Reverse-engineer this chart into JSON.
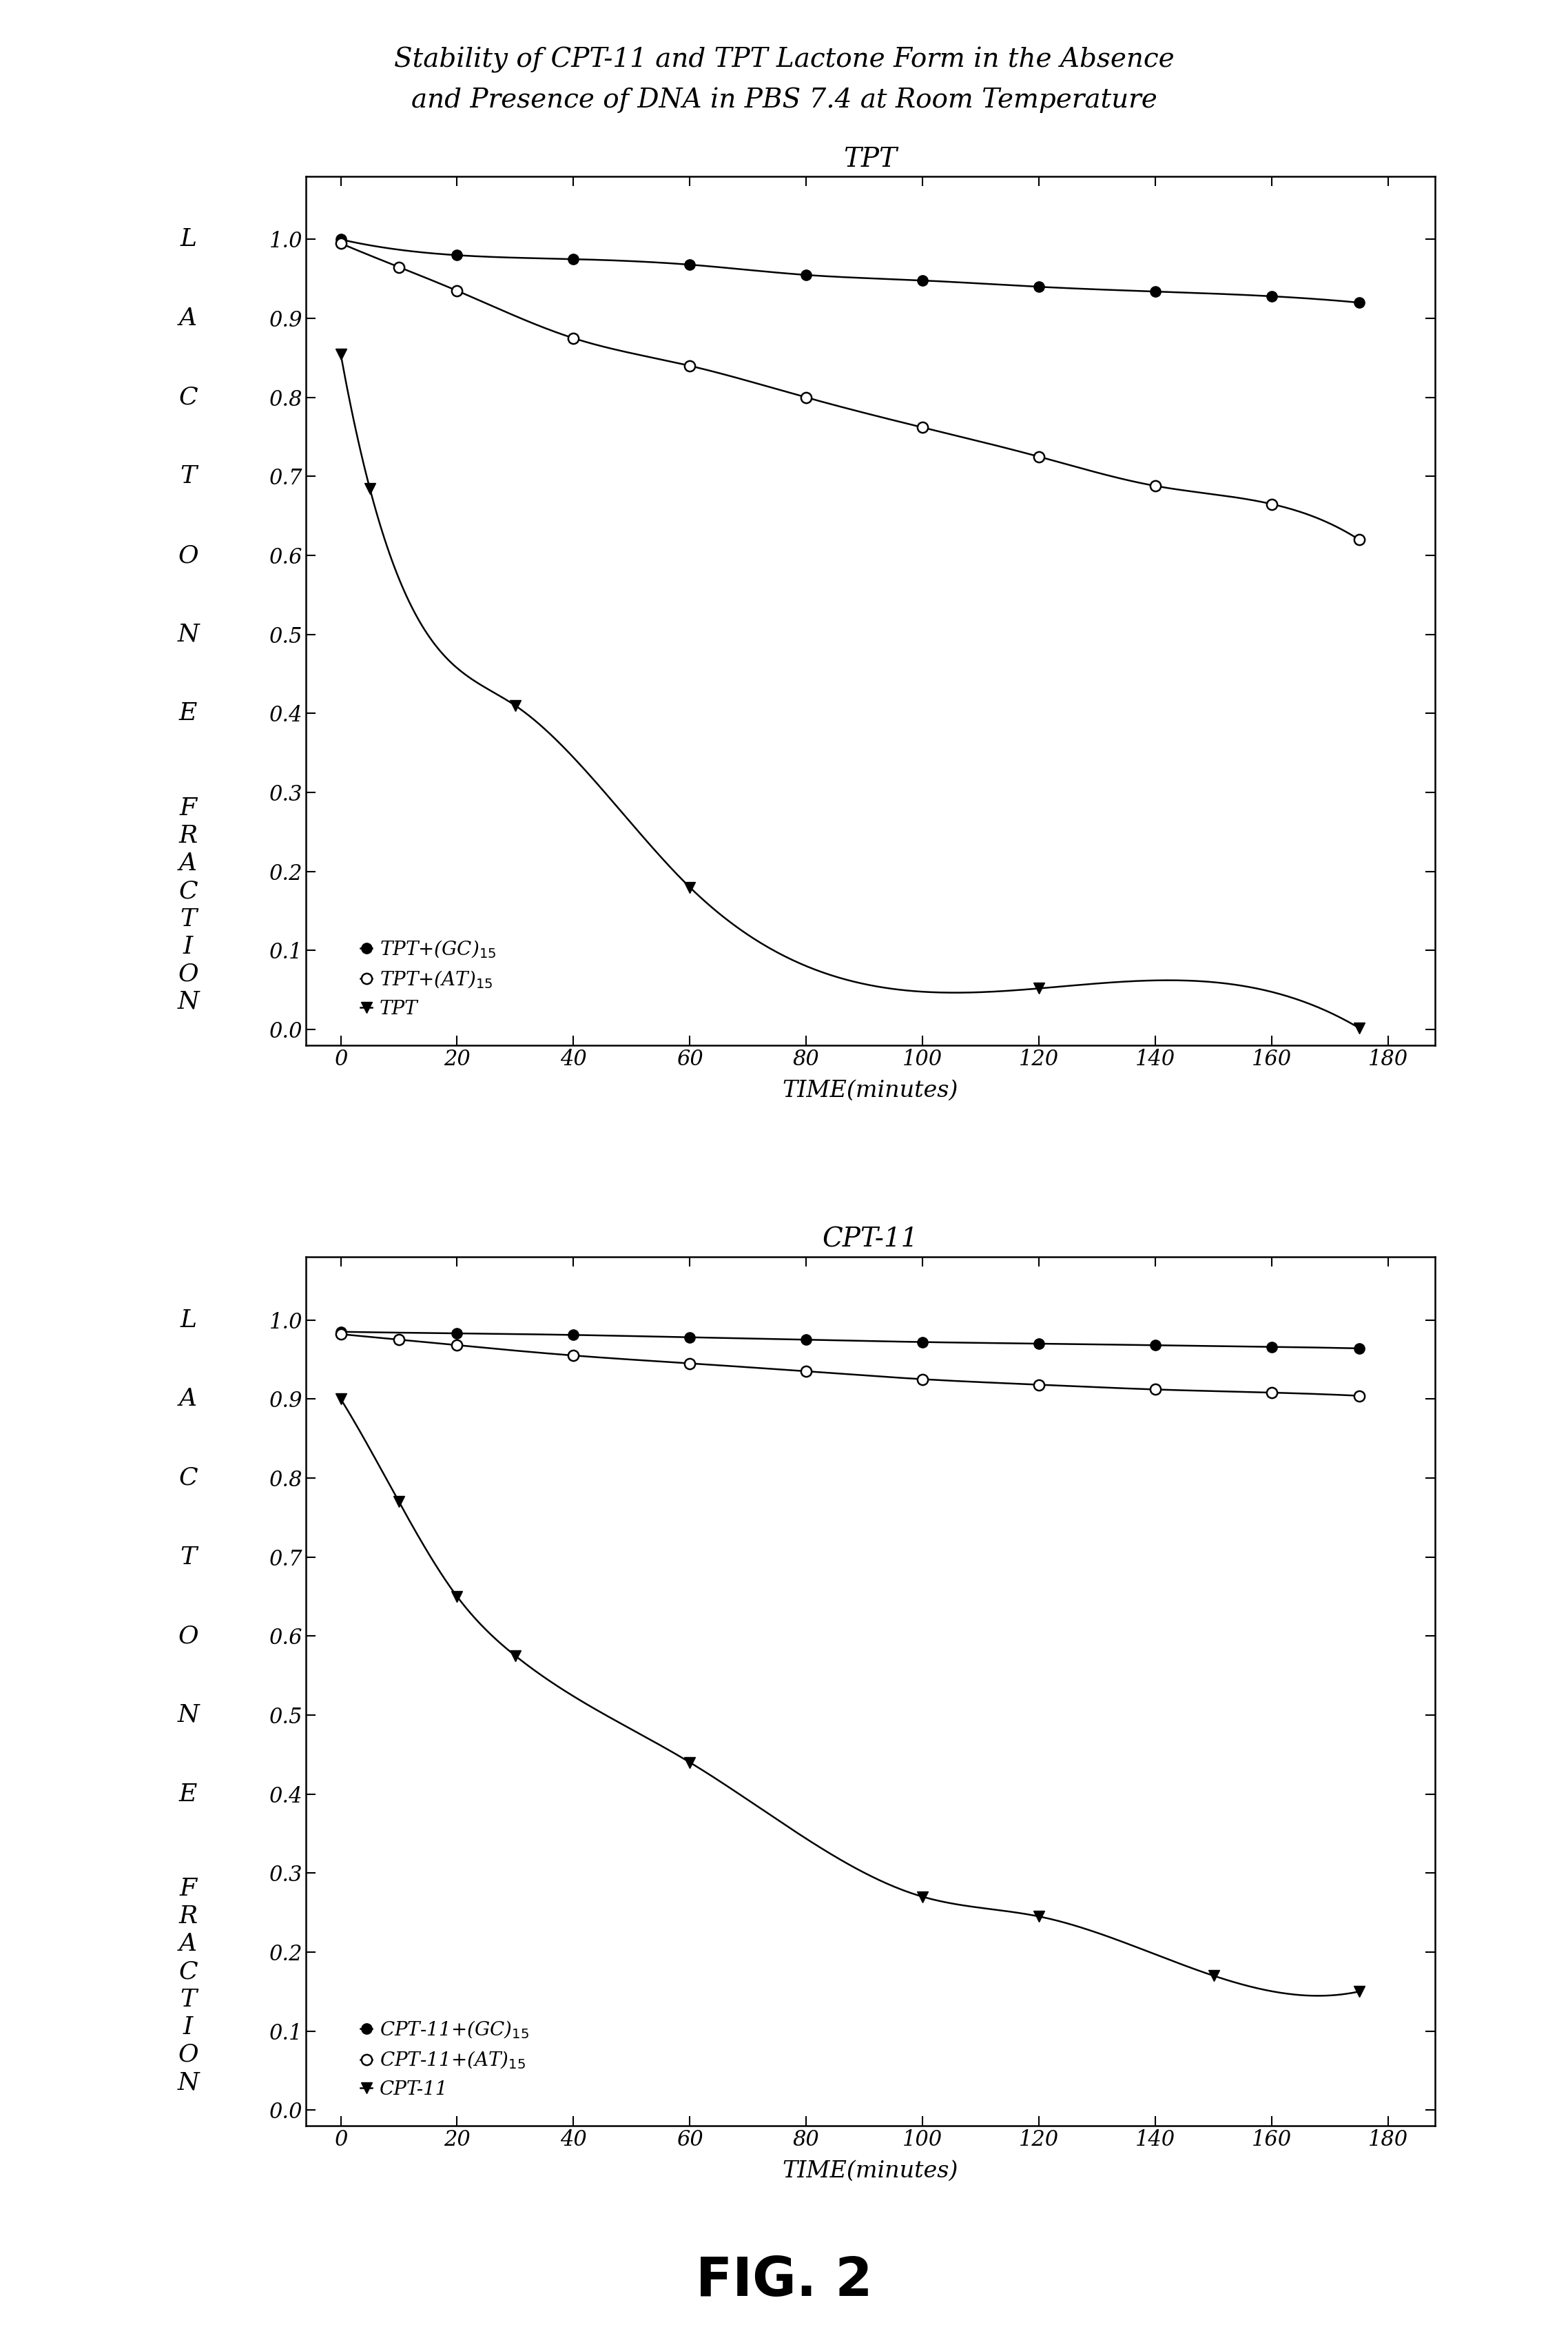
{
  "title_main_line1": "Stability of CPT-11 and TPT Lactone Form in the Absence",
  "title_main_line2": "and Presence of DNA in PBS 7.4 at Room Temperature",
  "fig2_label": "FIG. 2",
  "xlabel": "TIME(minutes)",
  "tpt_title": "TPT",
  "tpt_gc_time": [
    0,
    20,
    40,
    60,
    80,
    100,
    120,
    140,
    160,
    175
  ],
  "tpt_gc15": [
    1.0,
    0.98,
    0.975,
    0.968,
    0.955,
    0.948,
    0.94,
    0.934,
    0.928,
    0.92
  ],
  "tpt_at_time": [
    0,
    10,
    20,
    40,
    60,
    80,
    100,
    120,
    140,
    160,
    175
  ],
  "tpt_at15": [
    0.995,
    0.965,
    0.935,
    0.875,
    0.84,
    0.8,
    0.762,
    0.725,
    0.688,
    0.665,
    0.62
  ],
  "tpt_alone_time": [
    0,
    5,
    30,
    60,
    120,
    175
  ],
  "tpt_alone": [
    0.855,
    0.685,
    0.41,
    0.18,
    0.052,
    0.002
  ],
  "cpt_title": "CPT-11",
  "cpt_gc_time": [
    0,
    20,
    40,
    60,
    80,
    100,
    120,
    140,
    160,
    175
  ],
  "cpt_gc15": [
    0.985,
    0.983,
    0.981,
    0.978,
    0.975,
    0.972,
    0.97,
    0.968,
    0.966,
    0.964
  ],
  "cpt_at_time": [
    0,
    10,
    20,
    40,
    60,
    80,
    100,
    120,
    140,
    160,
    175
  ],
  "cpt_at15": [
    0.982,
    0.975,
    0.968,
    0.955,
    0.945,
    0.935,
    0.925,
    0.918,
    0.912,
    0.908,
    0.904
  ],
  "cpt_alone_time": [
    0,
    10,
    20,
    30,
    60,
    100,
    120,
    150,
    175
  ],
  "cpt_alone": [
    0.9,
    0.77,
    0.65,
    0.575,
    0.44,
    0.27,
    0.245,
    0.17,
    0.15
  ],
  "background": "#ffffff",
  "ylim": [
    -0.02,
    1.08
  ],
  "yticks": [
    0.0,
    0.1,
    0.2,
    0.3,
    0.4,
    0.5,
    0.6,
    0.7,
    0.8,
    0.9,
    1.0
  ],
  "xticks": [
    0,
    20,
    40,
    60,
    80,
    100,
    120,
    140,
    160,
    180
  ],
  "xlim": [
    -6,
    188
  ]
}
